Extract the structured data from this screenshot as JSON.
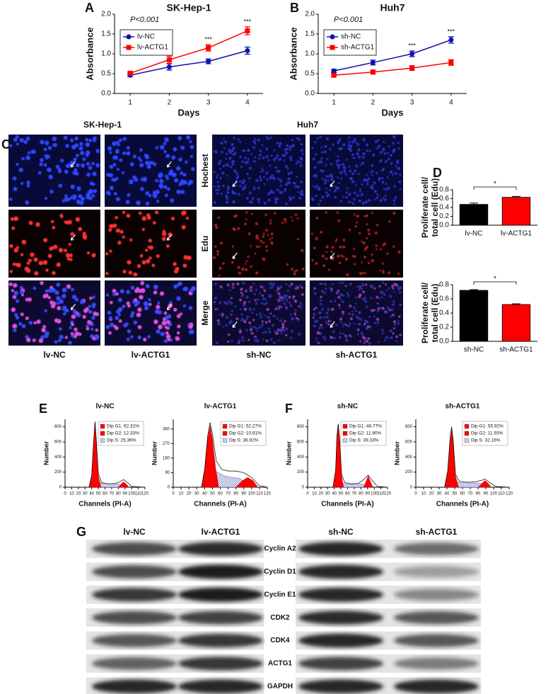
{
  "panel_labels": [
    "A",
    "B",
    "C",
    "D",
    "E",
    "F",
    "G"
  ],
  "chart_data": [
    {
      "type": "line",
      "title": "SK-Hep-1",
      "xlabel": "Days",
      "ylabel": "Absorbance",
      "p_value": "P<0.001",
      "legend": "upper left",
      "x": [
        1,
        2,
        3,
        4
      ],
      "xlim": [
        0.6,
        4.4
      ],
      "xticks": [
        1,
        2,
        3,
        4
      ],
      "ylim": [
        0,
        2
      ],
      "yticks": [
        {
          "value": 0,
          "label": "0.0"
        },
        {
          "value": 0.5,
          "label": "0.5"
        },
        {
          "value": 1,
          "label": "1.0"
        },
        {
          "value": 1.5,
          "label": "1.5"
        },
        {
          "value": 2,
          "label": "2.0"
        }
      ],
      "series": [
        {
          "name": "lv-NC",
          "color": "#1010b0",
          "marker": "circle",
          "values": [
            0.46,
            0.67,
            0.81,
            1.08
          ],
          "errors": [
            0.03,
            0.08,
            0.06,
            0.09
          ]
        },
        {
          "name": "lv-ACTG1",
          "color": "#ff0000",
          "marker": "square",
          "values": [
            0.51,
            0.85,
            1.15,
            1.58
          ],
          "errors": [
            0.03,
            0.09,
            0.08,
            0.1
          ]
        }
      ],
      "significance": [
        {
          "label": "***",
          "x": 3
        },
        {
          "label": "***",
          "x": 4
        }
      ]
    },
    {
      "type": "line",
      "title": "Huh7",
      "xlabel": "Days",
      "ylabel": "Absorbance",
      "p_value": "P<0.001",
      "legend": "upper left",
      "x": [
        1,
        2,
        3,
        4
      ],
      "xlim": [
        0.6,
        4.4
      ],
      "xticks": [
        1,
        2,
        3,
        4
      ],
      "ylim": [
        0,
        2
      ],
      "yticks": [
        {
          "value": 0,
          "label": "0.0"
        },
        {
          "value": 0.5,
          "label": "0.5"
        },
        {
          "value": 1,
          "label": "1.0"
        },
        {
          "value": 1.5,
          "label": "1.5"
        },
        {
          "value": 2,
          "label": "2.0"
        }
      ],
      "series": [
        {
          "name": "sh-NC",
          "color": "#1010b0",
          "marker": "circle",
          "values": [
            0.57,
            0.78,
            1.0,
            1.35
          ],
          "errors": [
            0.04,
            0.06,
            0.07,
            0.08
          ]
        },
        {
          "name": "sh-ACTG1",
          "color": "#ff0000",
          "marker": "square",
          "values": [
            0.46,
            0.54,
            0.64,
            0.78
          ],
          "errors": [
            0.03,
            0.05,
            0.06,
            0.07
          ]
        }
      ],
      "significance": [
        {
          "label": "***",
          "x": 3
        },
        {
          "label": "***",
          "x": 4
        }
      ]
    },
    {
      "type": "bar",
      "ylabel": [
        "Proliferate cell/",
        "total cell (Edu)"
      ],
      "categories": [
        "lv-NC",
        "lv-ACTG1"
      ],
      "values": [
        0.47,
        0.63
      ],
      "errors": [
        0.03,
        0.02
      ],
      "colors": [
        "#000000",
        "#ff0000"
      ],
      "ylim": [
        0,
        0.8
      ],
      "yticks": [
        {
          "value": 0,
          "label": "0.0"
        },
        {
          "value": 0.2,
          "label": "0.2"
        },
        {
          "value": 0.4,
          "label": "0.4"
        },
        {
          "value": 0.6,
          "label": "0.6"
        },
        {
          "value": 0.8,
          "label": "0.8"
        }
      ],
      "significance": "*"
    },
    {
      "type": "bar",
      "ylabel": [
        "Proliferate cell/",
        "total cell (Edu)"
      ],
      "categories": [
        "sh-NC",
        "sh-ACTG1"
      ],
      "values": [
        0.72,
        0.52
      ],
      "errors": [
        0.01,
        0.01
      ],
      "colors": [
        "#000000",
        "#ff0000"
      ],
      "ylim": [
        0,
        0.8
      ],
      "yticks": [
        {
          "value": 0,
          "label": "0.0"
        },
        {
          "value": 0.2,
          "label": "0.2"
        },
        {
          "value": 0.4,
          "label": "0.4"
        },
        {
          "value": 0.6,
          "label": "0.6"
        },
        {
          "value": 0.8,
          "label": "0.8"
        }
      ],
      "significance": "*"
    },
    {
      "type": "area",
      "title": "lv-NC",
      "xlabel": "Channels (PI-A)",
      "ylabel": "Number",
      "legend": "upper right",
      "xlim": [
        0,
        120
      ],
      "xticks": [
        0,
        10,
        20,
        30,
        40,
        50,
        60,
        70,
        80,
        90,
        100,
        110,
        120
      ],
      "ylim": [
        0,
        900
      ],
      "yticks": [
        0,
        200,
        400,
        600,
        800
      ],
      "series": [
        {
          "name": "Dip G1: 62.31%",
          "color": "#ff0000",
          "style": "fill",
          "x": [
            36,
            40,
            43,
            45,
            47,
            50,
            54
          ],
          "values": [
            0,
            150,
            600,
            850,
            600,
            150,
            0
          ]
        },
        {
          "name": "Dip G2: 12.33%",
          "color": "#ff0000",
          "style": "fill",
          "x": [
            80,
            84,
            88,
            92,
            96
          ],
          "values": [
            0,
            40,
            70,
            40,
            0
          ]
        },
        {
          "name": "Dip S: 25.36%",
          "color": "#3a3ab0",
          "style": "hatch",
          "x": [
            50,
            60,
            70,
            80,
            90
          ],
          "values": [
            60,
            50,
            45,
            45,
            0
          ]
        },
        {
          "color": "#000000",
          "style": "outline",
          "x": [
            20,
            36,
            40,
            43,
            45,
            47,
            50,
            55,
            65,
            75,
            82,
            88,
            94,
            100,
            120
          ],
          "values": [
            0,
            0,
            160,
            620,
            870,
            620,
            180,
            60,
            45,
            50,
            70,
            100,
            60,
            10,
            0
          ]
        }
      ]
    },
    {
      "type": "area",
      "title": "lv-ACTG1",
      "xlabel": "Channels (PI-A)",
      "ylabel": "Number",
      "legend": "upper right",
      "xlim": [
        0,
        120
      ],
      "xticks": [
        0,
        10,
        20,
        30,
        40,
        50,
        60,
        70,
        80,
        90,
        100,
        110,
        120
      ],
      "ylim": [
        0,
        420
      ],
      "yticks": [
        0,
        90,
        180,
        270,
        360
      ],
      "series": [
        {
          "name": "Dip G1: 52.27%",
          "color": "#ff0000",
          "style": "fill",
          "x": [
            36,
            40,
            44,
            47,
            50,
            54,
            58
          ],
          "values": [
            0,
            100,
            300,
            380,
            300,
            120,
            0
          ]
        },
        {
          "name": "Dip G2: 10.81%",
          "color": "#ff0000",
          "style": "fill",
          "x": [
            80,
            88,
            95,
            102,
            108
          ],
          "values": [
            0,
            40,
            60,
            40,
            0
          ]
        },
        {
          "name": "Dip S: 36.92%",
          "color": "#3a3ab0",
          "style": "hatch",
          "x": [
            54,
            65,
            75,
            85,
            100
          ],
          "values": [
            100,
            70,
            60,
            55,
            0
          ]
        },
        {
          "color": "#000000",
          "style": "outline",
          "x": [
            20,
            36,
            40,
            44,
            47,
            50,
            55,
            62,
            70,
            80,
            90,
            100,
            110,
            120
          ],
          "values": [
            0,
            0,
            110,
            320,
            400,
            330,
            160,
            110,
            100,
            100,
            90,
            60,
            10,
            0
          ]
        }
      ]
    },
    {
      "type": "area",
      "title": "sh-NC",
      "xlabel": "Channels (PI-A)",
      "ylabel": "Number",
      "legend": "upper right",
      "xlim": [
        0,
        120
      ],
      "xticks": [
        0,
        10,
        20,
        30,
        40,
        50,
        60,
        70,
        80,
        90,
        100,
        110,
        120
      ],
      "ylim": [
        0,
        900
      ],
      "yticks": [
        0,
        200,
        400,
        600,
        800
      ],
      "series": [
        {
          "name": "Dip G1: 48.77%",
          "color": "#ff0000",
          "style": "fill",
          "x": [
            38,
            42,
            44,
            46,
            48,
            51,
            54
          ],
          "values": [
            0,
            200,
            650,
            820,
            650,
            150,
            0
          ]
        },
        {
          "name": "Dip G2: 11.90%",
          "color": "#ff0000",
          "style": "fill",
          "x": [
            84,
            88,
            91,
            94,
            98
          ],
          "values": [
            0,
            80,
            150,
            80,
            0
          ]
        },
        {
          "name": "Dip S: 39.33%",
          "color": "#3a3ab0",
          "style": "hatch",
          "x": [
            52,
            62,
            72,
            82,
            92
          ],
          "values": [
            50,
            40,
            40,
            45,
            0
          ]
        },
        {
          "color": "#000000",
          "style": "outline",
          "x": [
            20,
            38,
            42,
            44,
            46,
            48,
            51,
            56,
            66,
            76,
            84,
            91,
            97,
            105,
            120
          ],
          "values": [
            0,
            0,
            220,
            680,
            840,
            660,
            170,
            60,
            45,
            50,
            100,
            160,
            90,
            10,
            0
          ]
        }
      ]
    },
    {
      "type": "area",
      "title": "sh-ACTG1",
      "xlabel": "Channels (PI-A)",
      "ylabel": "Number",
      "legend": "upper right",
      "xlim": [
        0,
        120
      ],
      "xticks": [
        0,
        10,
        20,
        30,
        40,
        50,
        60,
        70,
        80,
        90,
        100,
        110,
        120
      ],
      "ylim": [
        0,
        900
      ],
      "yticks": [
        0,
        200,
        400,
        600,
        800
      ],
      "series": [
        {
          "name": "Dip G1: 55.92%",
          "color": "#ff0000",
          "style": "fill",
          "x": [
            37,
            41,
            44,
            46,
            48,
            51,
            55
          ],
          "values": [
            0,
            200,
            600,
            780,
            600,
            150,
            0
          ]
        },
        {
          "name": "Dip G2: 11.93%",
          "color": "#ff0000",
          "style": "fill",
          "x": [
            80,
            85,
            89,
            93,
            97
          ],
          "values": [
            0,
            50,
            90,
            50,
            0
          ]
        },
        {
          "name": "Dip S: 32.16%",
          "color": "#3a3ab0",
          "style": "hatch",
          "x": [
            52,
            62,
            72,
            82,
            92
          ],
          "values": [
            70,
            60,
            55,
            55,
            0
          ]
        },
        {
          "color": "#000000",
          "style": "outline",
          "x": [
            20,
            37,
            41,
            44,
            46,
            48,
            51,
            56,
            66,
            76,
            84,
            89,
            95,
            103,
            120
          ],
          "values": [
            0,
            0,
            220,
            640,
            800,
            630,
            170,
            80,
            65,
            70,
            90,
            110,
            60,
            10,
            0
          ]
        }
      ]
    }
  ],
  "microscopy": {
    "titles": [
      "SK-Hep-1",
      "Huh7"
    ],
    "rows": [
      "Hochest",
      "Edu",
      "Merge"
    ],
    "columns": [
      "lv-NC",
      "lv-ACTG1",
      "sh-NC",
      "sh-ACTG1"
    ]
  },
  "western_blot": {
    "columns": [
      "lv-NC",
      "lv-ACTG1",
      "sh-NC",
      "sh-ACTG1"
    ],
    "rows": [
      "Cyclin A2",
      "Cyclin D1",
      "Cyclin E1",
      "CDK2",
      "CDK4",
      "ACTG1",
      "GAPDH"
    ]
  }
}
